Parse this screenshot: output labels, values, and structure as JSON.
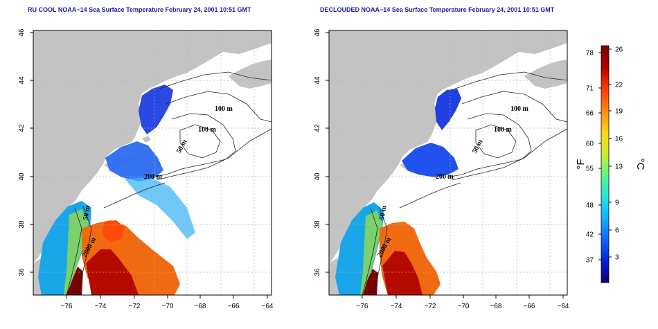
{
  "left_panel": {
    "title": "RU COOL NOAA−14 Sea Surface Temperature February 24, 2001 10:51 GMT",
    "contour_labels": [
      "100 m",
      "100 m",
      "50 m",
      "200 m",
      "50 m",
      "2000 m"
    ]
  },
  "right_panel": {
    "title": "DECLOUDED NOAA−14 Sea Surface Temperature February 24, 2001 10:51 GMT",
    "contour_labels": [
      "100 m",
      "100 m",
      "50 m",
      "200 m",
      "50 m",
      "2000 m"
    ]
  },
  "axes": {
    "x_ticks": [
      "−76",
      "−74",
      "−72",
      "−70",
      "−68",
      "−66",
      "−64"
    ],
    "y_ticks": [
      "46",
      "44",
      "42",
      "40",
      "38",
      "36"
    ]
  },
  "colorbar": {
    "unit_f": "°F",
    "unit_c": "°C",
    "fahrenheit_ticks": [
      "78",
      "71",
      "66",
      "60",
      "55",
      "48",
      "42",
      "37"
    ],
    "celsius_ticks": [
      "26",
      "22",
      "19",
      "16",
      "13",
      "9",
      "6",
      "3"
    ],
    "colors": [
      "#08006e",
      "#0a1fd8",
      "#1166ff",
      "#11b0ff",
      "#22e8d8",
      "#66f288",
      "#c8ee30",
      "#ffd21a",
      "#ff8a10",
      "#ff3a05",
      "#b30000",
      "#7a0000"
    ]
  },
  "colors": {
    "land": "#c3c3c3",
    "ocean": "#ffffff",
    "title": "#1a1aa8",
    "grid": "#b0b0b0"
  }
}
